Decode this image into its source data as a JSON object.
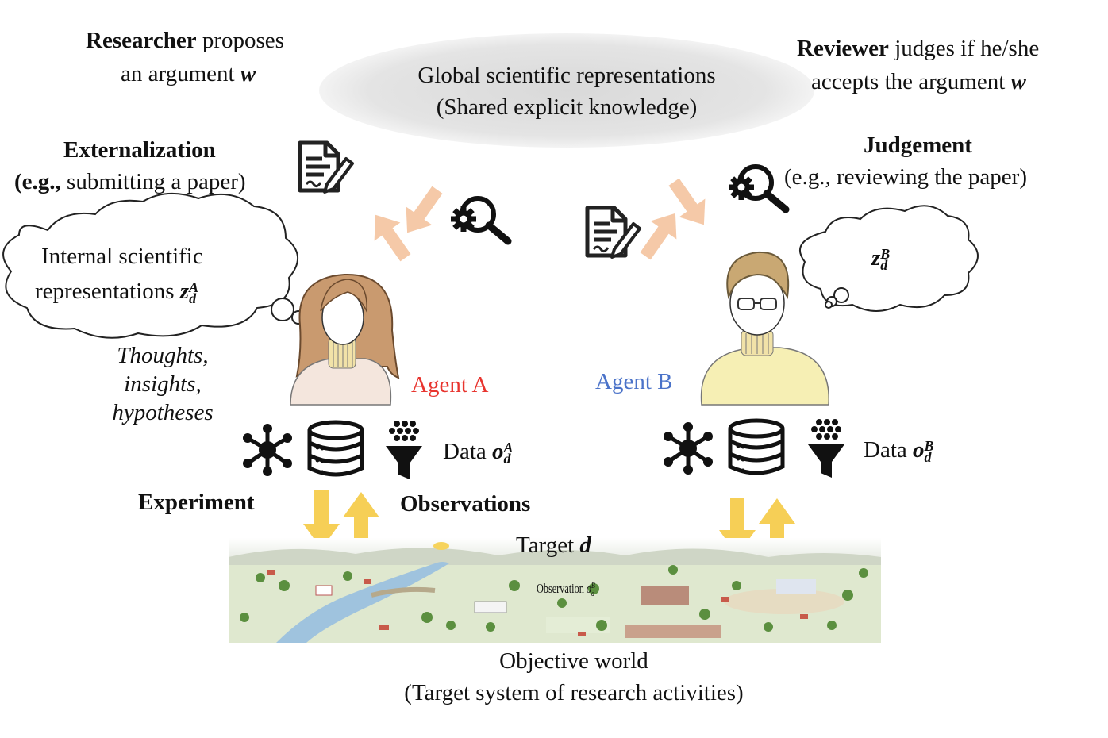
{
  "global": {
    "line1": "Global scientific representations",
    "line2": "(Shared explicit knowledge)"
  },
  "researcher": {
    "role": "Researcher",
    "line1_rest": " proposes",
    "line2": "an argument ",
    "var": "w"
  },
  "reviewer": {
    "role": "Reviewer",
    "line1_rest": " judges if he/she",
    "line2": "accepts the argument ",
    "var": "w"
  },
  "externalization": {
    "title": "Externalization",
    "example_prefix": "(e.g.,",
    "example_rest": " submitting a paper)"
  },
  "judgement": {
    "title": "Judgement",
    "example": "(e.g., reviewing the paper)"
  },
  "internal": {
    "line1": "Internal scientific",
    "line2": "representations ",
    "var": "z",
    "sub": "d",
    "sup": "A"
  },
  "thought_b": {
    "var": "z",
    "sub": "d",
    "sup": "B"
  },
  "thoughts_caption": [
    "Thoughts,",
    "insights,",
    "hypotheses"
  ],
  "agent_a": {
    "label": "Agent A",
    "color": "#e8342e"
  },
  "agent_b": {
    "label": "Agent B",
    "color": "#4b73c9"
  },
  "data_a": {
    "label": "Data ",
    "var": "o",
    "sub": "d",
    "sup": "A"
  },
  "data_b": {
    "label": "Data ",
    "var": "o",
    "sub": "d",
    "sup": "B"
  },
  "experiment": "Experiment",
  "observations": "Observations",
  "target": {
    "label": "Target ",
    "var": "d"
  },
  "scene_text": {
    "label": "Observation ",
    "var": "o",
    "sub": "d",
    "sup": "B"
  },
  "objective": {
    "line1": "Objective world",
    "line2": "(Target system of research activities)"
  },
  "icons": [
    "document-pen-icon",
    "magnifier-gear-icon",
    "network-icon",
    "database-icon",
    "funnel-icon"
  ],
  "colors": {
    "arrow_peach": "#f5c9a8",
    "arrow_yellow": "#f6cf56",
    "cloud_gray": "#e3e3e3"
  }
}
